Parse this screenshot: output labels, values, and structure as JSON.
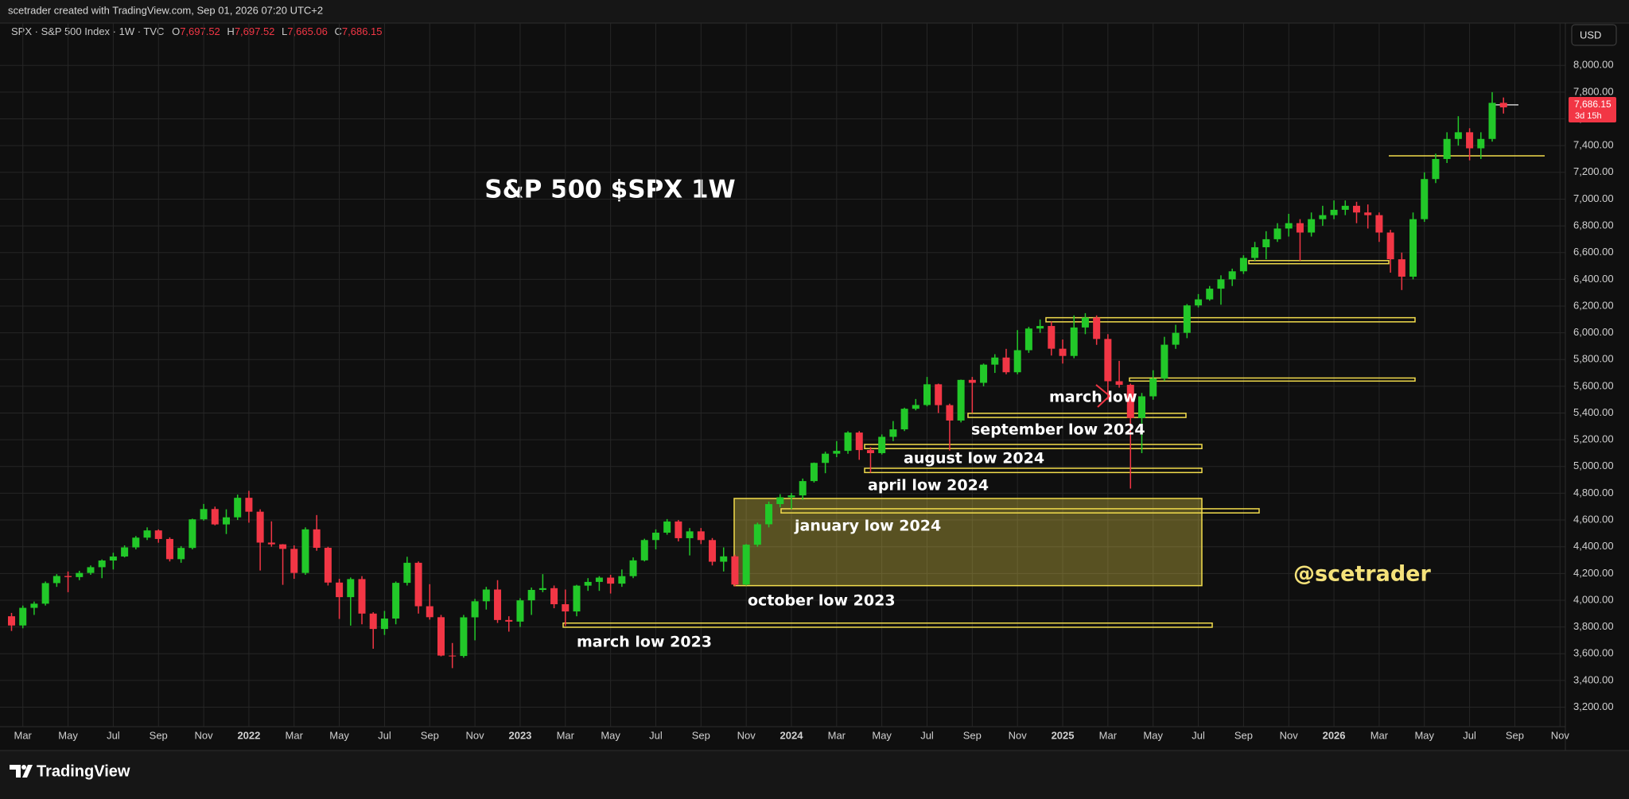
{
  "header": {
    "attribution": "scetrader created with TradingView.com, Sep 01, 2026 07:20 UTC+2"
  },
  "legend": {
    "symbol": "SPX · S&P 500 Index · 1W · TVC",
    "fields": [
      {
        "key": "O",
        "value": "7,697.52"
      },
      {
        "key": "H",
        "value": "7,697.52"
      },
      {
        "key": "L",
        "value": "7,665.06"
      },
      {
        "key": "C",
        "value": "7,686.15"
      }
    ]
  },
  "currency": "USD",
  "footer": {
    "brand": "TradingView"
  },
  "chart_data": {
    "type": "candlestick",
    "title": "S&P 500 $SPX 1W",
    "categories": [
      null,
      "Mar",
      null,
      null,
      null,
      "May",
      null,
      null,
      null,
      "Jul",
      null,
      null,
      null,
      "Sep",
      null,
      null,
      null,
      "Nov",
      null,
      null,
      null,
      "2022",
      null,
      null,
      null,
      "Mar",
      null,
      null,
      null,
      "May",
      null,
      null,
      null,
      "Jul",
      null,
      null,
      null,
      "Sep",
      null,
      null,
      null,
      "Nov",
      null,
      null,
      null,
      "2023",
      null,
      null,
      null,
      "Mar",
      null,
      null,
      null,
      "May",
      null,
      null,
      null,
      "Jul",
      null,
      null,
      null,
      "Sep",
      null,
      null,
      null,
      "Nov",
      null,
      null,
      null,
      "2024",
      null,
      null,
      null,
      "Mar",
      null,
      null,
      null,
      "May",
      null,
      null,
      null,
      "Jul",
      null,
      null,
      null,
      "Sep",
      null,
      null,
      null,
      "Nov",
      null,
      null,
      null,
      "2025",
      null,
      null,
      null,
      "Mar",
      null,
      null,
      null,
      "May",
      null,
      null,
      null,
      "Jul",
      null,
      null,
      null,
      "Sep",
      null,
      null,
      null,
      "Nov",
      null,
      null,
      null,
      "2026",
      null,
      null,
      null,
      "Mar",
      null,
      null,
      null,
      "May",
      null,
      null,
      null,
      "Jul",
      null,
      null,
      null,
      "Sep",
      null,
      null,
      null,
      "Nov"
    ],
    "open": [
      3880,
      3811,
      3943,
      3974,
      4128,
      4181,
      4173,
      4204,
      4247,
      4297,
      4327,
      4395,
      4468,
      4522,
      4458,
      4307,
      4391,
      4605,
      4682,
      4567,
      4620,
      4766,
      4662,
      4431,
      4418,
      4384,
      4204,
      4530,
      4392,
      4132,
      4023,
      4158,
      3900,
      3785,
      3863,
      4130,
      4280,
      3955,
      3873,
      3586,
      3583,
      3872,
      3992,
      4080,
      3852,
      3840,
      3999,
      4077,
      4090,
      3970,
      3916,
      4109,
      4137,
      4169,
      4124,
      4180,
      4298,
      4450,
      4505,
      4589,
      4464,
      4515,
      4450,
      4288,
      4328,
      4117,
      4415,
      4568,
      4719,
      4770,
      4784,
      4891,
      5027,
      5096,
      5117,
      5254,
      5123,
      5100,
      5222,
      5278,
      5432,
      5460,
      5615,
      5459,
      5344,
      5648,
      5626,
      5762,
      5815,
      5705,
      5870,
      6032,
      6051,
      5881,
      5827,
      6040,
      6114,
      5954,
      5638,
      5611,
      5363,
      5525,
      5659,
      5911,
      6000,
      6205,
      6250,
      6330,
      6400,
      6460,
      6560,
      6640,
      6700,
      6780,
      6820,
      6750,
      6850,
      6880,
      6920,
      6950,
      6900,
      6880,
      6750,
      6550,
      6420,
      6850,
      7150,
      7300,
      7450,
      7500,
      7380,
      7450,
      7720,
      null,
      null,
      null,
      null,
      null
    ],
    "high": [
      3905,
      3960,
      3990,
      4140,
      4195,
      4215,
      4220,
      4260,
      4305,
      4355,
      4410,
      4480,
      4545,
      4530,
      4470,
      4405,
      4610,
      4720,
      4700,
      4680,
      4790,
      4818,
      4680,
      4590,
      4420,
      4410,
      4545,
      4637,
      4400,
      4160,
      4170,
      4180,
      3910,
      3920,
      4140,
      4325,
      4290,
      4120,
      3890,
      3680,
      3890,
      4010,
      4100,
      4150,
      3880,
      4015,
      4095,
      4195,
      4110,
      4080,
      4115,
      4165,
      4180,
      4190,
      4230,
      4320,
      4460,
      4530,
      4607,
      4600,
      4540,
      4540,
      4465,
      4395,
      4340,
      4420,
      4580,
      4738,
      4793,
      4802,
      4910,
      5030,
      5111,
      5190,
      5264,
      5265,
      5145,
      5240,
      5340,
      5440,
      5505,
      5670,
      5620,
      5470,
      5650,
      5670,
      5770,
      5840,
      5880,
      6020,
      6045,
      6100,
      6085,
      5950,
      6130,
      6147,
      6130,
      5990,
      5790,
      5620,
      5550,
      5720,
      5970,
      6060,
      6215,
      6290,
      6350,
      6430,
      6480,
      6580,
      6680,
      6760,
      6820,
      6890,
      6850,
      6900,
      6950,
      6990,
      6990,
      6980,
      6960,
      6900,
      6770,
      6600,
      6900,
      7200,
      7340,
      7500,
      7620,
      7530,
      7500,
      7800,
      7760,
      null,
      null,
      null,
      null,
      null
    ],
    "low": [
      3770,
      3790,
      3890,
      3960,
      4100,
      4060,
      4150,
      4190,
      4165,
      4230,
      4320,
      4380,
      4450,
      4430,
      4290,
      4280,
      4380,
      4595,
      4560,
      4495,
      4600,
      4580,
      4222,
      4400,
      4115,
      4160,
      4190,
      4370,
      4110,
      3860,
      3810,
      3820,
      3637,
      3740,
      3820,
      4110,
      3900,
      3855,
      3580,
      3492,
      3570,
      3700,
      3930,
      3830,
      3765,
      3800,
      3890,
      4060,
      3940,
      3808,
      3880,
      4070,
      4070,
      4050,
      4100,
      4165,
      4290,
      4380,
      4490,
      4440,
      4335,
      4420,
      4260,
      4215,
      4103,
      4110,
      4400,
      4545,
      4695,
      4682,
      4750,
      4880,
      4950,
      5070,
      5095,
      5050,
      4953,
      5090,
      5190,
      5265,
      5420,
      5450,
      5400,
      5119,
      5330,
      5400,
      5600,
      5700,
      5690,
      5690,
      5850,
      6000,
      5830,
      5770,
      5810,
      5990,
      5910,
      5500,
      5590,
      4835,
      5100,
      5500,
      5640,
      5880,
      5960,
      6190,
      6240,
      6210,
      6350,
      6440,
      6540,
      6550,
      6680,
      6720,
      6540,
      6720,
      6800,
      6850,
      6880,
      6820,
      6780,
      6680,
      6450,
      6320,
      6400,
      6830,
      7120,
      7270,
      7400,
      7290,
      7300,
      7430,
      7640,
      null,
      null,
      null,
      null,
      null
    ],
    "close": [
      3811,
      3943,
      3974,
      4128,
      4181,
      4173,
      4204,
      4247,
      4297,
      4327,
      4395,
      4468,
      4522,
      4458,
      4307,
      4391,
      4605,
      4682,
      4567,
      4620,
      4766,
      4662,
      4431,
      4418,
      4384,
      4204,
      4530,
      4392,
      4132,
      4023,
      4158,
      3900,
      3785,
      3863,
      4130,
      4280,
      3955,
      3873,
      3586,
      3583,
      3872,
      3992,
      4080,
      3852,
      3840,
      3999,
      4077,
      4090,
      3970,
      3916,
      4109,
      4137,
      4169,
      4124,
      4180,
      4298,
      4450,
      4505,
      4589,
      4464,
      4515,
      4450,
      4288,
      4328,
      4117,
      4415,
      4568,
      4719,
      4770,
      4784,
      4891,
      5027,
      5096,
      5117,
      5254,
      5123,
      5100,
      5222,
      5278,
      5432,
      5460,
      5615,
      5459,
      5344,
      5648,
      5626,
      5762,
      5815,
      5705,
      5870,
      6032,
      6051,
      5881,
      5827,
      6040,
      6114,
      5954,
      5638,
      5611,
      5363,
      5525,
      5659,
      5911,
      6000,
      6205,
      6250,
      6330,
      6400,
      6460,
      6560,
      6640,
      6700,
      6780,
      6820,
      6750,
      6850,
      6880,
      6920,
      6950,
      6900,
      6880,
      6750,
      6550,
      6420,
      6850,
      7150,
      7300,
      7450,
      7500,
      7380,
      7450,
      7720,
      7686.15,
      null,
      null,
      null,
      null,
      null
    ],
    "up_color": "#22c829",
    "down_color": "#f23645",
    "ylim": [
      3090,
      8180
    ],
    "yticks": [
      {
        "value": 3200,
        "label": "3,200.00"
      },
      {
        "value": 3400,
        "label": "3,400.00"
      },
      {
        "value": 3600,
        "label": "3,600.00"
      },
      {
        "value": 3800,
        "label": "3,800.00"
      },
      {
        "value": 4000,
        "label": "4,000.00"
      },
      {
        "value": 4200,
        "label": "4,200.00"
      },
      {
        "value": 4400,
        "label": "4,400.00"
      },
      {
        "value": 4600,
        "label": "4,600.00"
      },
      {
        "value": 4800,
        "label": "4,800.00"
      },
      {
        "value": 5000,
        "label": "5,000.00"
      },
      {
        "value": 5200,
        "label": "5,200.00"
      },
      {
        "value": 5400,
        "label": "5,400.00"
      },
      {
        "value": 5600,
        "label": "5,600.00"
      },
      {
        "value": 5800,
        "label": "5,800.00"
      },
      {
        "value": 6000,
        "label": "6,000.00"
      },
      {
        "value": 6200,
        "label": "6,200.00"
      },
      {
        "value": 6400,
        "label": "6,400.00"
      },
      {
        "value": 6600,
        "label": "6,600.00"
      },
      {
        "value": 6800,
        "label": "6,800.00"
      },
      {
        "value": 7000,
        "label": "7,000.00"
      },
      {
        "value": 7200,
        "label": "7,200.00"
      },
      {
        "value": 7400,
        "label": "7,400.00"
      },
      {
        "value": 7600,
        "label": "7,600.00"
      },
      {
        "value": 7800,
        "label": "7,800.00"
      },
      {
        "value": 8000,
        "label": "8,000.00"
      }
    ],
    "grid": true,
    "last_price": {
      "value": 7686.15,
      "label": "7,686.15"
    },
    "countdown": "3d 15h",
    "zone_color": "#f2dc4c",
    "zones": [
      {
        "top": 4761,
        "bottom": 4109,
        "filled": true
      },
      {
        "top": 4684,
        "bottom": 4653,
        "filled": false
      },
      {
        "top": 3829,
        "bottom": 3798,
        "filled": false
      },
      {
        "top": 4987,
        "bottom": 4955,
        "filled": false
      },
      {
        "top": 5165,
        "bottom": 5134,
        "filled": false
      },
      {
        "top": 5398,
        "bottom": 5367,
        "filled": false
      },
      {
        "top": 5662,
        "bottom": 5639,
        "filled": false
      },
      {
        "top": 6113,
        "bottom": 6082,
        "filled": false
      },
      {
        "top": 6540,
        "bottom": 6517,
        "filled": false
      }
    ],
    "levels": [
      7324,
      7705
    ],
    "annotations": [
      "march low",
      "september low 2024",
      "august low 2024",
      "april low 2024",
      "january low 2024",
      "october low 2023",
      "march low 2023"
    ],
    "signature": "@scetrader"
  }
}
